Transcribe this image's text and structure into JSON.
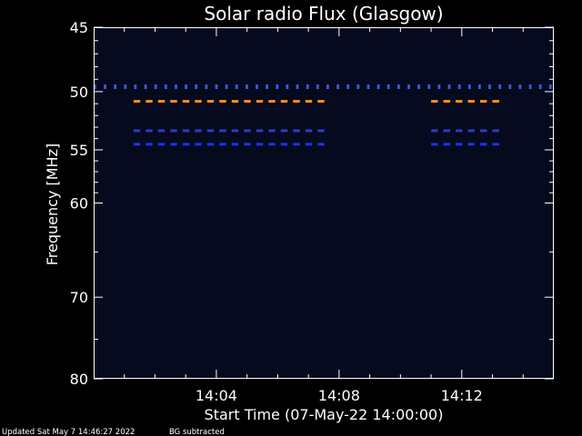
{
  "chart_data": {
    "type": "heatmap",
    "title": "Solar radio Flux (Glasgow)",
    "xlabel": "Start Time (07-May-22 14:00:00)",
    "ylabel": "Frequency [MHz]",
    "x_unit": "minutes after 14:00",
    "xlim": [
      0,
      15
    ],
    "ylim": [
      45,
      80
    ],
    "y_inverted": true,
    "y_scale": "log",
    "x_ticks": [
      {
        "value": 4,
        "label": "14:04"
      },
      {
        "value": 8,
        "label": "14:08"
      },
      {
        "value": 12,
        "label": "14:12"
      }
    ],
    "y_ticks": [
      {
        "value": 45,
        "label": "45"
      },
      {
        "value": 50,
        "label": "50"
      },
      {
        "value": 55,
        "label": "55"
      },
      {
        "value": 60,
        "label": "60"
      },
      {
        "value": 70,
        "label": "70"
      },
      {
        "value": 80,
        "label": "80"
      }
    ],
    "background_color": "#050a1e",
    "features": [
      {
        "kind": "dashed-band",
        "color": "#3c5ae0",
        "freq_mhz": 49.6,
        "x_start": 0.0,
        "x_end": 15.0,
        "dash_period_min": 0.33
      },
      {
        "kind": "dashed-band",
        "color": "#ff8a1e",
        "freq_mhz": 50.8,
        "x_start": 1.3,
        "x_end": 7.6,
        "dash_period_min": 0.4
      },
      {
        "kind": "dashed-band",
        "color": "#ff8a1e",
        "freq_mhz": 50.8,
        "x_start": 11.0,
        "x_end": 13.5,
        "dash_period_min": 0.4
      },
      {
        "kind": "dashed-band",
        "color": "#2a3cc8",
        "freq_mhz": 53.3,
        "x_start": 1.3,
        "x_end": 7.6,
        "dash_period_min": 0.4
      },
      {
        "kind": "dashed-band",
        "color": "#2a3cc8",
        "freq_mhz": 53.3,
        "x_start": 11.0,
        "x_end": 13.5,
        "dash_period_min": 0.4
      },
      {
        "kind": "dashed-band",
        "color": "#1a32f0",
        "freq_mhz": 54.5,
        "x_start": 1.3,
        "x_end": 7.6,
        "dash_period_min": 0.4
      },
      {
        "kind": "dashed-band",
        "color": "#1a32f0",
        "freq_mhz": 54.5,
        "x_start": 11.0,
        "x_end": 13.5,
        "dash_period_min": 0.4
      }
    ]
  },
  "footer": {
    "updated": "Updated Sat May  7 14:46:27 2022",
    "note": "BG subtracted"
  }
}
